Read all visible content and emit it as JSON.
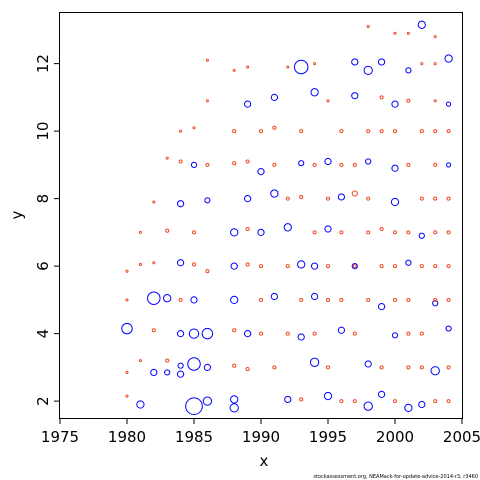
{
  "chart_data": {
    "type": "scatter",
    "title": "",
    "xlabel": "x",
    "ylabel": "y",
    "xlim": [
      1975,
      2005
    ],
    "ylim": [
      1.5,
      13.5
    ],
    "x_ticks": [
      1975,
      1980,
      1985,
      1990,
      1995,
      2000,
      2005
    ],
    "y_ticks": [
      2,
      4,
      6,
      8,
      10,
      12
    ],
    "x_tick_labels": [
      "1975",
      "1980",
      "1985",
      "1990",
      "1995",
      "2000",
      "2005"
    ],
    "y_tick_labels": [
      "2",
      "4",
      "6",
      "8",
      "10",
      "12"
    ],
    "grid": false,
    "legend": "none",
    "colors": {
      "positive": "#0000ff",
      "negative": "#ee4d2b"
    },
    "marker": "open-circle",
    "series": [
      {
        "color": "#0000ff",
        "points": [
          [
            1980,
            4.15,
            1.0
          ],
          [
            1981,
            1.9,
            0.7
          ],
          [
            1982,
            5.05,
            1.2
          ],
          [
            1982,
            2.85,
            0.6
          ],
          [
            1983,
            5.05,
            0.7
          ],
          [
            1983,
            2.85,
            0.5
          ],
          [
            1984,
            6.1,
            0.6
          ],
          [
            1984,
            7.85,
            0.6
          ],
          [
            1984,
            4.0,
            0.6
          ],
          [
            1984,
            3.05,
            0.5
          ],
          [
            1984,
            2.8,
            0.6
          ],
          [
            1985,
            1.85,
            1.6
          ],
          [
            1985,
            3.1,
            1.2
          ],
          [
            1985,
            4.0,
            0.9
          ],
          [
            1985,
            5.0,
            0.6
          ],
          [
            1985,
            9.0,
            0.5
          ],
          [
            1986,
            4.0,
            1.0
          ],
          [
            1986,
            2.0,
            0.8
          ],
          [
            1986,
            3.0,
            0.6
          ],
          [
            1986,
            7.95,
            0.5
          ],
          [
            1988,
            1.8,
            0.8
          ],
          [
            1988,
            2.05,
            0.7
          ],
          [
            1988,
            5.0,
            0.7
          ],
          [
            1988,
            7.0,
            0.7
          ],
          [
            1988,
            6.0,
            0.6
          ],
          [
            1989,
            10.8,
            0.6
          ],
          [
            1989,
            8.0,
            0.6
          ],
          [
            1989,
            4.0,
            0.6
          ],
          [
            1990,
            7.0,
            0.6
          ],
          [
            1990,
            8.8,
            0.6
          ],
          [
            1991,
            8.15,
            0.7
          ],
          [
            1991,
            11.0,
            0.6
          ],
          [
            1991,
            5.1,
            0.6
          ],
          [
            1992,
            7.15,
            0.7
          ],
          [
            1992,
            2.05,
            0.6
          ],
          [
            1993,
            11.9,
            1.3
          ],
          [
            1993,
            6.05,
            0.7
          ],
          [
            1993,
            3.9,
            0.6
          ],
          [
            1993,
            9.05,
            0.5
          ],
          [
            1994,
            11.15,
            0.7
          ],
          [
            1994,
            3.15,
            0.8
          ],
          [
            1994,
            6.0,
            0.6
          ],
          [
            1994,
            5.1,
            0.6
          ],
          [
            1995,
            2.15,
            0.7
          ],
          [
            1995,
            7.1,
            0.6
          ],
          [
            1995,
            9.1,
            0.6
          ],
          [
            1996,
            4.1,
            0.6
          ],
          [
            1996,
            8.05,
            0.6
          ],
          [
            1997,
            12.05,
            0.6
          ],
          [
            1997,
            11.05,
            0.6
          ],
          [
            1997,
            6.0,
            0.5
          ],
          [
            1998,
            11.8,
            0.8
          ],
          [
            1998,
            1.85,
            0.8
          ],
          [
            1998,
            3.1,
            0.6
          ],
          [
            1998,
            9.1,
            0.5
          ],
          [
            1999,
            12.05,
            0.6
          ],
          [
            1999,
            4.8,
            0.6
          ],
          [
            1999,
            2.2,
            0.6
          ],
          [
            2000,
            7.9,
            0.7
          ],
          [
            2000,
            10.8,
            0.6
          ],
          [
            2000,
            8.9,
            0.6
          ],
          [
            2000,
            3.95,
            0.5
          ],
          [
            2001,
            1.8,
            0.7
          ],
          [
            2001,
            11.8,
            0.5
          ],
          [
            2001,
            6.1,
            0.5
          ],
          [
            2002,
            13.15,
            0.7
          ],
          [
            2002,
            1.9,
            0.6
          ],
          [
            2002,
            6.9,
            0.5
          ],
          [
            2003,
            2.9,
            0.8
          ],
          [
            2003,
            4.9,
            0.5
          ],
          [
            2004,
            12.15,
            0.7
          ],
          [
            2004,
            4.15,
            0.5
          ],
          [
            2004,
            10.8,
            0.4
          ],
          [
            2004,
            9.0,
            0.4
          ]
        ]
      },
      {
        "color": "#ee4d2b",
        "points": [
          [
            1980,
            2.15,
            0.2
          ],
          [
            1980,
            2.85,
            0.2
          ],
          [
            1980,
            5.0,
            0.2
          ],
          [
            1980,
            5.85,
            0.2
          ],
          [
            1981,
            3.2,
            0.2
          ],
          [
            1981,
            6.05,
            0.2
          ],
          [
            1981,
            7.0,
            0.2
          ],
          [
            1982,
            4.1,
            0.3
          ],
          [
            1982,
            6.1,
            0.2
          ],
          [
            1982,
            7.9,
            0.2
          ],
          [
            1983,
            3.2,
            0.3
          ],
          [
            1983,
            7.05,
            0.3
          ],
          [
            1983,
            9.2,
            0.2
          ],
          [
            1984,
            5.0,
            0.3
          ],
          [
            1984,
            9.1,
            0.3
          ],
          [
            1984,
            10.0,
            0.2
          ],
          [
            1985,
            6.05,
            0.3
          ],
          [
            1985,
            7.0,
            0.3
          ],
          [
            1985,
            10.1,
            0.2
          ],
          [
            1986,
            5.85,
            0.3
          ],
          [
            1986,
            9.0,
            0.3
          ],
          [
            1986,
            10.9,
            0.2
          ],
          [
            1986,
            12.1,
            0.2
          ],
          [
            1988,
            3.05,
            0.3
          ],
          [
            1988,
            4.1,
            0.3
          ],
          [
            1988,
            9.05,
            0.3
          ],
          [
            1988,
            10.0,
            0.3
          ],
          [
            1988,
            11.8,
            0.2
          ],
          [
            1989,
            2.95,
            0.3
          ],
          [
            1989,
            6.05,
            0.3
          ],
          [
            1989,
            7.1,
            0.3
          ],
          [
            1989,
            9.1,
            0.3
          ],
          [
            1989,
            11.9,
            0.2
          ],
          [
            1990,
            4.0,
            0.3
          ],
          [
            1990,
            5.0,
            0.3
          ],
          [
            1990,
            6.0,
            0.3
          ],
          [
            1990,
            10.0,
            0.3
          ],
          [
            1991,
            3.0,
            0.3
          ],
          [
            1991,
            9.0,
            0.3
          ],
          [
            1991,
            10.1,
            0.3
          ],
          [
            1992,
            4.0,
            0.3
          ],
          [
            1992,
            6.0,
            0.3
          ],
          [
            1992,
            8.0,
            0.3
          ],
          [
            1992,
            11.9,
            0.2
          ],
          [
            1993,
            2.05,
            0.3
          ],
          [
            1993,
            5.0,
            0.3
          ],
          [
            1993,
            8.05,
            0.3
          ],
          [
            1993,
            10.0,
            0.3
          ],
          [
            1994,
            4.0,
            0.3
          ],
          [
            1994,
            7.0,
            0.3
          ],
          [
            1994,
            9.0,
            0.3
          ],
          [
            1994,
            12.0,
            0.2
          ],
          [
            1995,
            3.0,
            0.3
          ],
          [
            1995,
            5.0,
            0.3
          ],
          [
            1995,
            6.0,
            0.3
          ],
          [
            1995,
            8.0,
            0.3
          ],
          [
            1995,
            10.9,
            0.2
          ],
          [
            1996,
            2.0,
            0.3
          ],
          [
            1996,
            5.0,
            0.3
          ],
          [
            1996,
            7.0,
            0.3
          ],
          [
            1996,
            9.0,
            0.3
          ],
          [
            1996,
            10.0,
            0.3
          ],
          [
            1997,
            2.0,
            0.3
          ],
          [
            1997,
            4.0,
            0.3
          ],
          [
            1997,
            6.0,
            0.3
          ],
          [
            1997,
            8.15,
            0.5
          ],
          [
            1997,
            9.0,
            0.3
          ],
          [
            1998,
            5.0,
            0.3
          ],
          [
            1998,
            7.0,
            0.3
          ],
          [
            1998,
            8.0,
            0.3
          ],
          [
            1998,
            10.0,
            0.3
          ],
          [
            1998,
            13.1,
            0.2
          ],
          [
            1999,
            3.0,
            0.3
          ],
          [
            1999,
            6.0,
            0.3
          ],
          [
            1999,
            7.1,
            0.3
          ],
          [
            1999,
            10.0,
            0.3
          ],
          [
            1999,
            11.0,
            0.3
          ],
          [
            2000,
            2.0,
            0.3
          ],
          [
            2000,
            5.0,
            0.3
          ],
          [
            2000,
            6.0,
            0.3
          ],
          [
            2000,
            7.0,
            0.3
          ],
          [
            2000,
            10.0,
            0.3
          ],
          [
            2000,
            12.9,
            0.2
          ],
          [
            2001,
            3.0,
            0.3
          ],
          [
            2001,
            4.0,
            0.3
          ],
          [
            2001,
            5.0,
            0.3
          ],
          [
            2001,
            7.0,
            0.3
          ],
          [
            2001,
            9.0,
            0.3
          ],
          [
            2001,
            10.9,
            0.3
          ],
          [
            2001,
            12.9,
            0.2
          ],
          [
            2002,
            3.0,
            0.3
          ],
          [
            2002,
            4.0,
            0.3
          ],
          [
            2002,
            6.0,
            0.3
          ],
          [
            2002,
            8.0,
            0.3
          ],
          [
            2002,
            10.0,
            0.3
          ],
          [
            2002,
            12.0,
            0.2
          ],
          [
            2003,
            2.0,
            0.3
          ],
          [
            2003,
            5.0,
            0.3
          ],
          [
            2003,
            6.0,
            0.3
          ],
          [
            2003,
            7.0,
            0.3
          ],
          [
            2003,
            8.0,
            0.3
          ],
          [
            2003,
            9.0,
            0.3
          ],
          [
            2003,
            10.0,
            0.3
          ],
          [
            2003,
            10.9,
            0.2
          ],
          [
            2003,
            12.0,
            0.2
          ],
          [
            2003,
            12.8,
            0.2
          ],
          [
            2004,
            2.0,
            0.3
          ],
          [
            2004,
            3.0,
            0.3
          ],
          [
            2004,
            5.0,
            0.3
          ],
          [
            2004,
            6.0,
            0.3
          ],
          [
            2004,
            7.0,
            0.3
          ],
          [
            2004,
            8.0,
            0.3
          ],
          [
            2004,
            10.0,
            0.3
          ]
        ]
      }
    ]
  },
  "footer": {
    "credit": "stockassessment.org, NEAMack-for-update-advice-2014-r3, r3460"
  }
}
